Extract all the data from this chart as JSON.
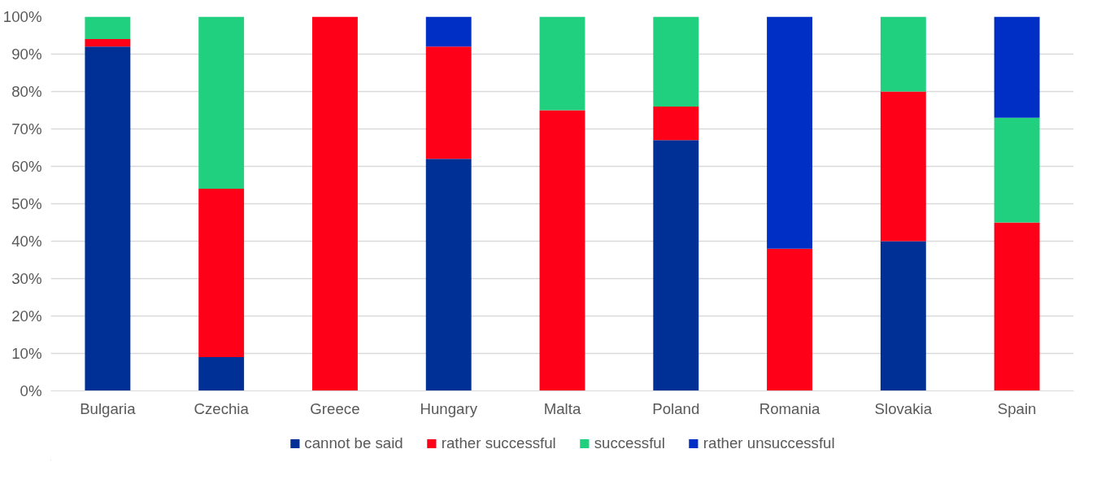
{
  "chart_data": {
    "type": "bar",
    "stacked": true,
    "categories": [
      "Bulgaria",
      "Czechia",
      "Greece",
      "Hungary",
      "Malta",
      "Poland",
      "Romania",
      "Slovakia",
      "Spain"
    ],
    "series": [
      {
        "name": "cannot be said",
        "color": "#003096",
        "values": [
          92,
          9,
          0,
          62,
          0,
          67,
          0,
          40,
          0
        ]
      },
      {
        "name": "rather successful",
        "color": "#ff0019",
        "values": [
          2,
          45,
          100,
          30,
          75,
          9,
          38,
          40,
          45
        ]
      },
      {
        "name": "successful",
        "color": "#21d07f",
        "values": [
          6,
          46,
          0,
          0,
          25,
          24,
          0,
          20,
          28
        ]
      },
      {
        "name": "rather unsuccessful",
        "color": "#002fc6",
        "values": [
          0,
          0,
          0,
          8,
          0,
          0,
          62,
          0,
          27
        ]
      }
    ],
    "ylim": [
      0,
      100
    ],
    "yticks": [
      {
        "value": 0,
        "label": "0%"
      },
      {
        "value": 10,
        "label": "10%"
      },
      {
        "value": 20,
        "label": "20%"
      },
      {
        "value": 30,
        "label": "30%"
      },
      {
        "value": 40,
        "label": "40%"
      },
      {
        "value": 50,
        "label": "50%"
      },
      {
        "value": 60,
        "label": "60%"
      },
      {
        "value": 70,
        "label": "70%"
      },
      {
        "value": 80,
        "label": "80%"
      },
      {
        "value": 90,
        "label": "90%"
      },
      {
        "value": 100,
        "label": "100%"
      }
    ],
    "grid": "y",
    "legend": "bottom"
  }
}
